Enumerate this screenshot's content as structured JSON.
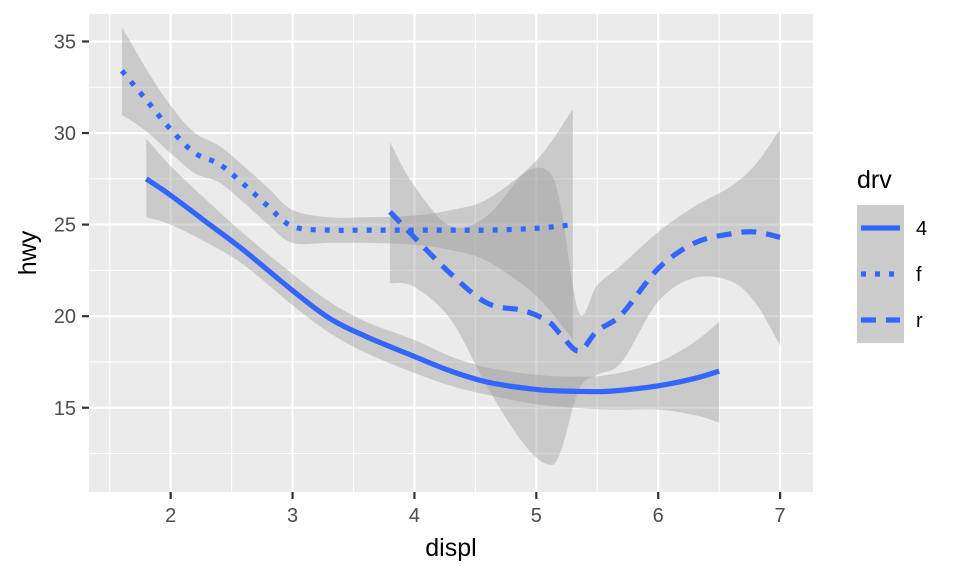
{
  "chart_data": {
    "type": "line",
    "xlabel": "displ",
    "ylabel": "hwy",
    "xlim": [
      1.33,
      7.27
    ],
    "ylim": [
      10.4,
      36.5
    ],
    "x_ticks": [
      2,
      3,
      4,
      5,
      6,
      7
    ],
    "y_ticks": [
      15,
      20,
      25,
      30,
      35
    ],
    "x_tick_labels": [
      "2",
      "3",
      "4",
      "5",
      "6",
      "7"
    ],
    "y_tick_labels": [
      "15",
      "20",
      "25",
      "30",
      "35"
    ],
    "grid": true,
    "legend": {
      "title": "drv",
      "position": "right"
    },
    "series": [
      {
        "name": "4",
        "linetype": "solid",
        "x": [
          1.8,
          2.0,
          2.3,
          2.6,
          3.0,
          3.3,
          3.6,
          4.0,
          4.3,
          4.6,
          5.0,
          5.3,
          5.6,
          6.0,
          6.3,
          6.5
        ],
        "y": [
          27.5,
          26.6,
          25.1,
          23.6,
          21.4,
          19.9,
          18.9,
          17.8,
          17.0,
          16.4,
          16.0,
          15.9,
          15.9,
          16.2,
          16.6,
          17.0
        ],
        "ci_upper": [
          29.7,
          28.2,
          26.3,
          24.5,
          22.3,
          20.8,
          19.7,
          18.7,
          17.8,
          17.2,
          16.8,
          16.7,
          16.8,
          17.5,
          18.6,
          19.7
        ],
        "ci_lower": [
          25.4,
          25.0,
          24.0,
          22.8,
          20.6,
          19.1,
          18.0,
          16.9,
          16.2,
          15.7,
          15.2,
          15.0,
          14.9,
          14.9,
          14.6,
          14.2
        ]
      },
      {
        "name": "f",
        "linetype": "dotted",
        "x": [
          1.6,
          1.8,
          2.0,
          2.2,
          2.4,
          2.6,
          2.8,
          3.0,
          3.3,
          3.6,
          4.0,
          4.3,
          4.6,
          5.0,
          5.3
        ],
        "y": [
          33.4,
          31.8,
          30.2,
          28.9,
          28.3,
          27.2,
          26.0,
          24.9,
          24.7,
          24.7,
          24.7,
          24.7,
          24.7,
          24.8,
          25.0
        ],
        "ci_upper": [
          35.8,
          33.5,
          31.5,
          30.0,
          29.3,
          28.2,
          27.0,
          25.8,
          25.4,
          25.4,
          25.5,
          25.8,
          26.4,
          28.5,
          31.3
        ],
        "ci_lower": [
          31.0,
          30.1,
          28.9,
          27.8,
          27.3,
          26.2,
          25.0,
          24.0,
          24.0,
          24.0,
          23.9,
          23.6,
          23.0,
          21.1,
          18.7
        ]
      },
      {
        "name": "r",
        "linetype": "dashed",
        "x": [
          3.8,
          4.0,
          4.3,
          4.6,
          4.9,
          5.1,
          5.2,
          5.35,
          5.5,
          5.7,
          6.0,
          6.3,
          6.6,
          6.8,
          7.0
        ],
        "y": [
          25.7,
          24.3,
          22.3,
          20.7,
          20.3,
          19.7,
          19.0,
          18.1,
          19.2,
          20.1,
          22.6,
          24.0,
          24.5,
          24.6,
          24.3
        ],
        "ci_upper": [
          29.5,
          27.1,
          24.9,
          25.5,
          27.8,
          27.9,
          26.0,
          20.2,
          21.7,
          22.8,
          24.6,
          26.0,
          27.1,
          28.3,
          30.2
        ],
        "ci_lower": [
          21.8,
          21.6,
          19.8,
          16.1,
          13.0,
          11.9,
          12.6,
          16.0,
          16.8,
          17.5,
          20.8,
          22.1,
          21.9,
          20.7,
          18.4
        ]
      }
    ]
  },
  "colors": {
    "line": "#3366ff",
    "panel": "#ebebeb",
    "grid_major": "#ffffff",
    "ribbon": "#999999",
    "axis_text": "#4d4d4d",
    "legend_key": "#cccccc"
  }
}
